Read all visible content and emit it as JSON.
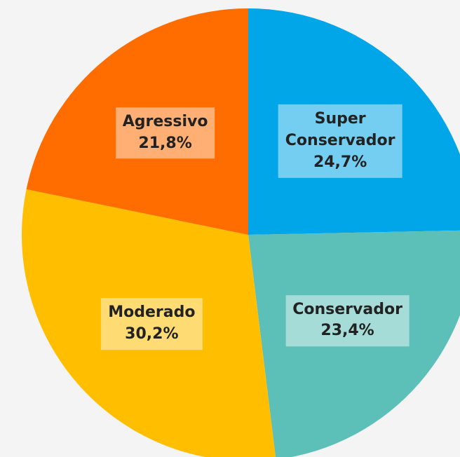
{
  "chart_data": {
    "type": "pie",
    "categories": [
      "Super Conservador",
      "Conservador",
      "Moderado",
      "Agressivo"
    ],
    "values": [
      24.7,
      23.4,
      30.2,
      21.8
    ],
    "value_labels": [
      "24,7%",
      "23,4%",
      "30,2%",
      "21,8%"
    ],
    "colors": [
      "#00a6e8",
      "#5cc0b9",
      "#ffbf00",
      "#ff6d00"
    ]
  }
}
